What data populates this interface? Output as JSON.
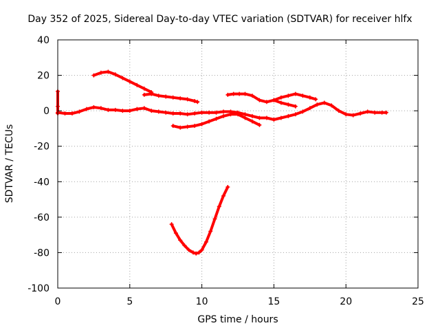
{
  "chart_data": {
    "type": "line",
    "title": "Day 352 of 2025, Sidereal Day-to-day VTEC variation (SDTVAR) for receiver hlfx",
    "xlabel": "GPS time / hours",
    "ylabel": "SDTVAR / TECUs",
    "xlim": [
      0,
      25
    ],
    "ylim": [
      -100,
      40
    ],
    "xticks": [
      0,
      5,
      10,
      15,
      20,
      25
    ],
    "yticks": [
      -100,
      -80,
      -60,
      -40,
      -20,
      0,
      20,
      40
    ],
    "grid": true,
    "marker": "plus",
    "color": "#ff0000",
    "series": [
      {
        "name": "track-1",
        "x": [
          0,
          0.5,
          1,
          1.5,
          2,
          2.5,
          3,
          3.5,
          4,
          4.5,
          5,
          5.5,
          6,
          6.5,
          7,
          7.5,
          8,
          8.5,
          9,
          9.5,
          10,
          10.5,
          11,
          11.5,
          12,
          12.5,
          13,
          13.5,
          14,
          14.5,
          15,
          15.5,
          16,
          16.5,
          17,
          17.5,
          18,
          18.5,
          19,
          19.5,
          20,
          20.5,
          21,
          21.5,
          22,
          22.5,
          22.8
        ],
        "y": [
          -1,
          -1.5,
          -1.5,
          -0.5,
          1,
          2,
          1.5,
          0.5,
          0.5,
          0,
          0,
          1,
          1.5,
          0,
          -0.5,
          -1,
          -1.5,
          -1.5,
          -2,
          -1.5,
          -1,
          -1,
          -1,
          -0.5,
          -0.5,
          -1,
          -2,
          -3,
          -4,
          -4,
          -5,
          -4,
          -3,
          -2,
          -0.5,
          1.5,
          3.5,
          4.5,
          3,
          0,
          -2,
          -2.5,
          -1.5,
          -0.5,
          -1,
          -1,
          -1
        ]
      },
      {
        "name": "track-2",
        "x": [
          2.5,
          3,
          3.5,
          4,
          4.5,
          5,
          5.5,
          6,
          6.5
        ],
        "y": [
          20,
          21.5,
          22,
          20.5,
          18.5,
          16.5,
          14.5,
          12.5,
          10.5
        ]
      },
      {
        "name": "track-3",
        "x": [
          6,
          6.5,
          7,
          7.5,
          8,
          8.5,
          9,
          9.5,
          9.7
        ],
        "y": [
          9,
          9.5,
          8.5,
          8,
          7.5,
          7,
          6.5,
          5.5,
          5
        ]
      },
      {
        "name": "track-4",
        "x": [
          8,
          8.5,
          9,
          9.5,
          10,
          10.5,
          11,
          11.5,
          12,
          12.5,
          13,
          13.5,
          14
        ],
        "y": [
          -8.5,
          -9.5,
          -9,
          -8.5,
          -7.5,
          -6,
          -4.5,
          -3,
          -2,
          -2,
          -4,
          -6,
          -8
        ]
      },
      {
        "name": "track-5",
        "x": [
          11.8,
          12.2,
          12.6,
          13,
          13.5,
          14,
          14.5,
          15,
          15.5,
          16,
          16.5,
          17,
          17.5,
          17.9
        ],
        "y": [
          9,
          9.5,
          9.5,
          9.5,
          8.5,
          6,
          5,
          6,
          7.5,
          8.5,
          9.5,
          8.5,
          7.5,
          6.5
        ]
      },
      {
        "name": "track-6",
        "x": [
          15,
          15.5,
          16,
          16.5
        ],
        "y": [
          6,
          4.5,
          3.5,
          2.5
        ]
      },
      {
        "name": "track-7",
        "x": [
          7.9,
          8.2,
          8.5,
          8.8,
          9.1,
          9.4,
          9.6,
          9.8,
          10,
          10.3,
          10.6,
          10.9,
          11.2,
          11.5,
          11.8
        ],
        "y": [
          -64,
          -69,
          -73,
          -76,
          -78.5,
          -80,
          -80.5,
          -80,
          -78.5,
          -74,
          -68,
          -61,
          -54,
          -48,
          -43
        ]
      },
      {
        "name": "outliers",
        "x": [
          0,
          0,
          0
        ],
        "y": [
          11,
          2.5,
          -1.5
        ]
      }
    ]
  }
}
